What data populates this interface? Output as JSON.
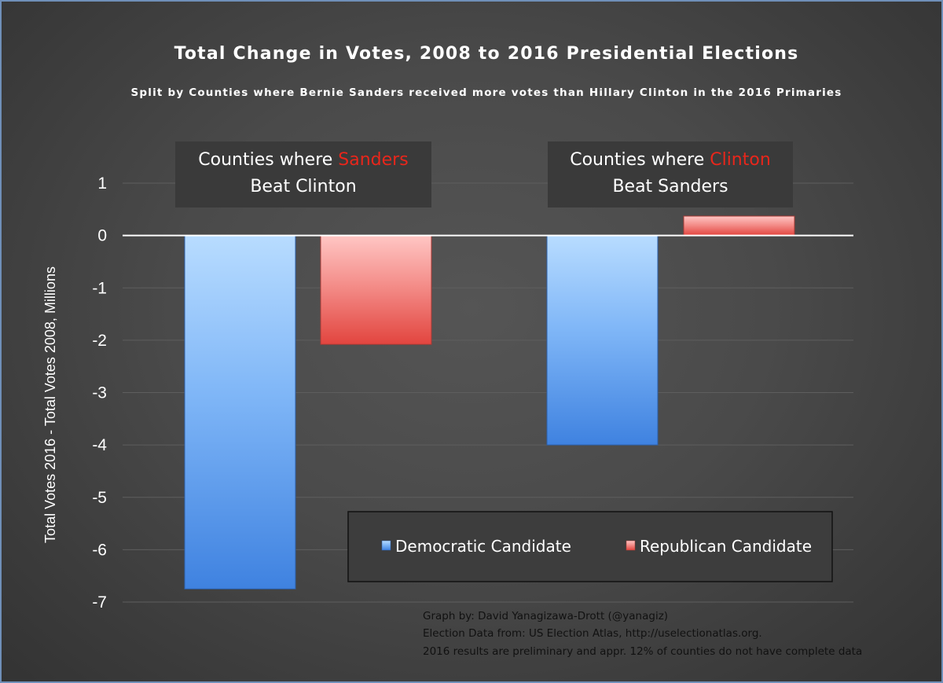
{
  "chart_data": {
    "type": "bar",
    "title": "Total Change in Votes, 2008 to 2016 Presidential Elections",
    "subtitle": "Split by Counties where Bernie Sanders received more votes than Hillary Clinton in the 2016 Primaries",
    "ylabel": "Total Votes 2016 - Total Votes 2008, Millions",
    "xlabel": "",
    "ylim": [
      -7,
      1
    ],
    "yticks": [
      "1",
      "0",
      "-1",
      "-2",
      "-3",
      "-4",
      "-5",
      "-6",
      "-7"
    ],
    "grid": true,
    "categories": [
      {
        "line1_prefix": "Counties where ",
        "line1_highlight": "Sanders",
        "line2": "Beat Clinton"
      },
      {
        "line1_prefix": "Counties where ",
        "line1_highlight": "Clinton",
        "line2": "Beat Sanders"
      }
    ],
    "series": [
      {
        "name": "Democratic Candidate",
        "color": "#5e9cf0",
        "values": [
          -6.75,
          -4.0
        ]
      },
      {
        "name": "Republican Candidate",
        "color": "#f06a66",
        "values": [
          -2.08,
          0.37
        ]
      }
    ],
    "legend_position": "bottom-right"
  },
  "credits": [
    "Graph by: David Yanagizawa-Drott (@yanagiz)",
    "Election Data from: US Election Atlas, http://uselectionatlas.org.",
    "2016 results are preliminary and appr. 12% of counties do not have complete data"
  ],
  "colors": {
    "highlight": "#e8261b",
    "background": "#4a4a4a"
  }
}
